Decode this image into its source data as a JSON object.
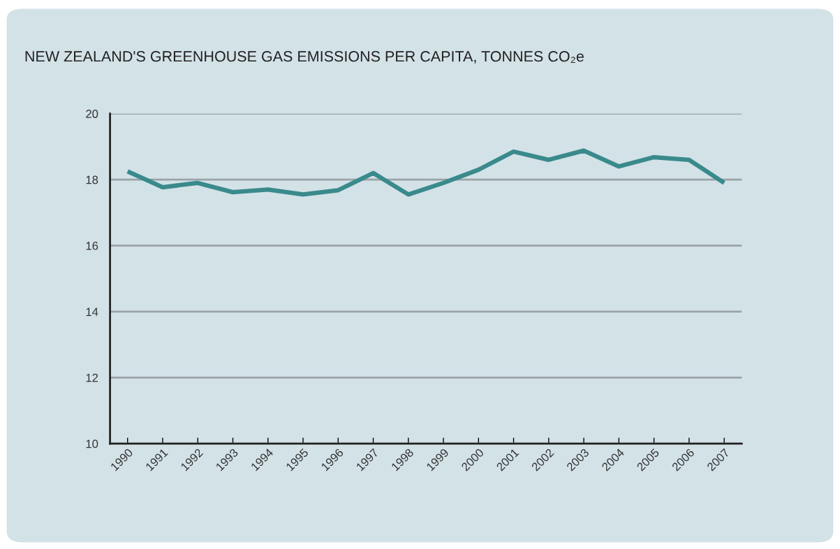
{
  "chart_data": {
    "type": "line",
    "title": "NEW ZEALAND'S GREENHOUSE GAS EMISSIONS PER CAPITA, TONNES CO₂e",
    "categories": [
      "1990",
      "1991",
      "1992",
      "1993",
      "1994",
      "1995",
      "1996",
      "1997",
      "1998",
      "1999",
      "2000",
      "2001",
      "2002",
      "2003",
      "2004",
      "2005",
      "2006",
      "2007"
    ],
    "series": [
      {
        "color": "#3a8a8c",
        "values": [
          18.25,
          17.77,
          17.9,
          17.62,
          17.7,
          17.55,
          17.68,
          18.2,
          17.55,
          17.9,
          18.3,
          18.85,
          18.6,
          18.88,
          18.4,
          18.68,
          18.6,
          17.9
        ]
      }
    ],
    "ylim": [
      10,
      20
    ],
    "yticks": [
      10,
      12,
      14,
      16,
      18,
      20
    ],
    "grid": "y",
    "marker": "none",
    "line_style": "solid"
  }
}
